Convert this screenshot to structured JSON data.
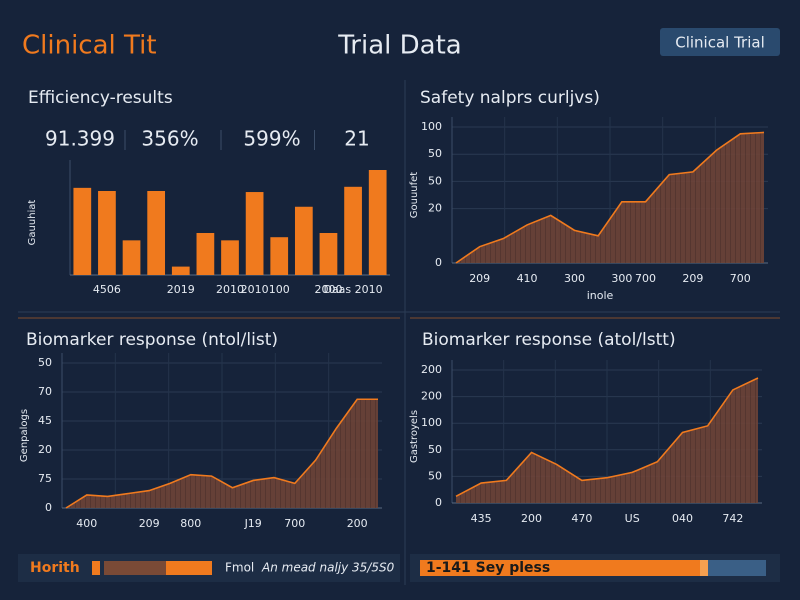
{
  "header": {
    "left_title": "Clinical Tit",
    "center_title": "Trial Data",
    "badge": "Clinical Trial"
  },
  "chart_data": [
    {
      "type": "bar",
      "title": "Efficiency-results",
      "stats": [
        "91.399",
        "356%",
        "599%",
        "21"
      ],
      "y_axis_title": "Gauuhiat",
      "color": "#f07a1e",
      "categories": [
        null,
        "4506",
        null,
        null,
        "2019",
        null,
        "2010",
        "2010",
        "100",
        null,
        "2000",
        "Daas 2010",
        null
      ],
      "values": [
        83,
        80,
        33,
        80,
        8,
        40,
        33,
        79,
        36,
        65,
        40,
        84,
        100
      ],
      "ylim": [
        0,
        100
      ]
    },
    {
      "type": "area",
      "title": "Safety nalprs curljvs)",
      "y_axis_title": "Gouuufet",
      "x_axis_title": "inole",
      "color": "#f07a1e",
      "categories": [
        null,
        "209",
        null,
        "410",
        null,
        "300",
        null,
        "300",
        "700",
        null,
        "209",
        null,
        "700",
        null
      ],
      "values": [
        0,
        12,
        18,
        28,
        35,
        24,
        20,
        45,
        45,
        65,
        67,
        83,
        95,
        96
      ],
      "ylim": [
        0,
        100
      ],
      "yticks": [
        0,
        {
          "value": 40,
          "label": "20"
        },
        {
          "value": 60,
          "label": "50"
        },
        {
          "value": 80,
          "label": "50"
        },
        100
      ]
    },
    {
      "type": "area",
      "title": "Biomarker response (ntol/list)",
      "y_axis_title": "Genpalogs",
      "color": "#f07a1e",
      "categories": [
        null,
        "400",
        null,
        null,
        "209",
        null,
        "800",
        null,
        null,
        "J19",
        null,
        "700",
        null,
        null,
        "200",
        null
      ],
      "values": [
        0,
        9,
        8,
        10,
        12,
        17,
        23,
        22,
        14,
        19,
        21,
        17,
        33,
        55,
        75,
        75
      ],
      "ylim": [
        0,
        100
      ],
      "yticks": [
        0,
        {
          "value": 20,
          "label": "75"
        },
        {
          "value": 40,
          "label": "20"
        },
        {
          "value": 60,
          "label": "45"
        },
        {
          "value": 80,
          "label": "70"
        },
        {
          "value": 100,
          "label": "50"
        }
      ]
    },
    {
      "type": "area",
      "title": "Biomarker response (atol/lstt)",
      "y_axis_title": "Gastroyels",
      "color": "#f07a1e",
      "categories": [
        null,
        "435",
        null,
        "200",
        null,
        "470",
        null,
        "US",
        null,
        "040",
        null,
        "742",
        null
      ],
      "values": [
        5,
        15,
        17,
        38,
        29,
        17,
        19,
        23,
        31,
        53,
        58,
        85,
        94
      ],
      "ylim": [
        0,
        100
      ],
      "yticks": [
        0,
        {
          "value": 20,
          "label": "50"
        },
        {
          "value": 40,
          "label": "50"
        },
        {
          "value": 60,
          "label": "100"
        },
        {
          "value": 80,
          "label": "200"
        },
        {
          "value": 100,
          "label": "200"
        }
      ]
    }
  ],
  "footer": {
    "left_label": "Horith",
    "status": "Fmol",
    "note": "An mead naljy 35/5S0",
    "right_label": "1-141 Sey pless"
  }
}
